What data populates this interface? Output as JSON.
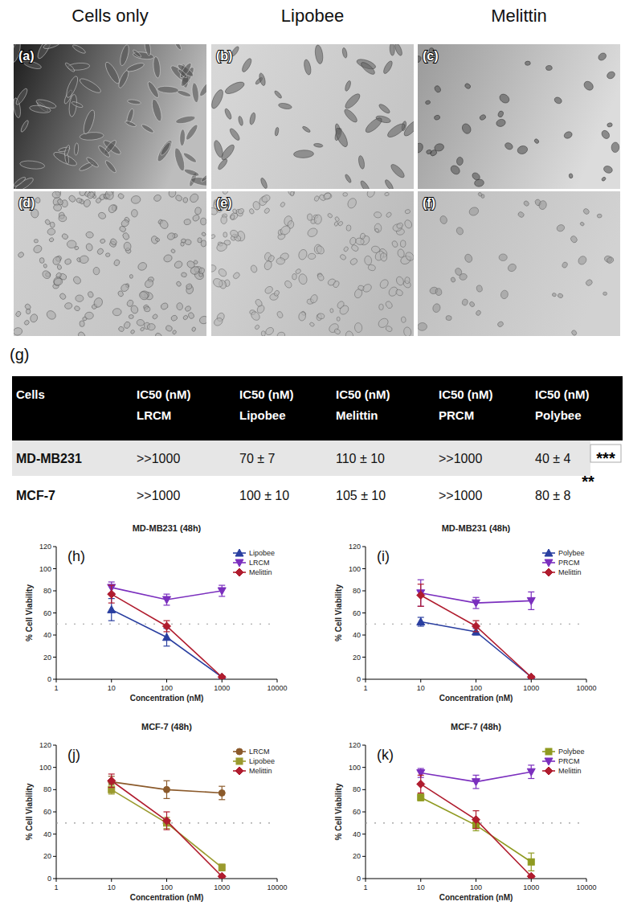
{
  "header": {
    "columns": [
      "Cells only",
      "Lipobee",
      "Melittin"
    ]
  },
  "images": {
    "labels": [
      "(a)",
      "(b)",
      "(c)",
      "(d)",
      "(e)",
      "(f)"
    ]
  },
  "table": {
    "panel": "(g)",
    "header": [
      [
        "Cells"
      ],
      [
        "IC50 (nM)",
        "LRCM"
      ],
      [
        "IC50 (nM)",
        "Lipobee"
      ],
      [
        "IC50 (nM)",
        "Melittin"
      ],
      [
        "IC50 (nM)",
        "PRCM"
      ],
      [
        "IC50 (nM)",
        "Polybee"
      ]
    ],
    "rows": [
      [
        "MD-MB231",
        ">>1000",
        "70 ± 7",
        "110 ± 10",
        ">>1000",
        "40 ± 4"
      ],
      [
        "MCF-7",
        ">>1000",
        "100 ± 10",
        "105 ± 10",
        ">>1000",
        "80 ± 8"
      ]
    ],
    "significance": [
      "***",
      "**"
    ]
  },
  "chart_data": [
    {
      "type": "line",
      "panel": "(h)",
      "title": "MD-MB231 (48h)",
      "x_label": "Concentration (nM)",
      "y_label": "% Cell Viability",
      "x": [
        10,
        100,
        1000
      ],
      "xlim": [
        1,
        10000
      ],
      "xticks": [
        1,
        10,
        100,
        1000,
        10000
      ],
      "ylim": [
        0,
        120
      ],
      "yticks": [
        0,
        20,
        40,
        60,
        80,
        100,
        120
      ],
      "log": "x",
      "legend": "upper right",
      "threshold": 50,
      "series": [
        {
          "name": "Lipobee",
          "color": "#2a3fa0",
          "marker": "triangle-up",
          "values": [
            63,
            38,
            2
          ],
          "errors": [
            10,
            8,
            1
          ]
        },
        {
          "name": "LRCM",
          "color": "#7b2fbe",
          "marker": "triangle-down",
          "values": [
            83,
            72,
            80
          ],
          "errors": [
            5,
            5,
            5
          ]
        },
        {
          "name": "Melittin",
          "color": "#b01c2e",
          "marker": "diamond",
          "values": [
            77,
            48,
            2
          ],
          "errors": [
            8,
            5,
            1
          ]
        }
      ]
    },
    {
      "type": "line",
      "panel": "(i)",
      "title": "MD-MB231 (48h)",
      "x_label": "Concentration (nM)",
      "y_label": "% Cell Viability",
      "x": [
        10,
        100,
        1000
      ],
      "xlim": [
        1,
        10000
      ],
      "xticks": [
        1,
        10,
        100,
        1000,
        10000
      ],
      "ylim": [
        0,
        120
      ],
      "yticks": [
        0,
        20,
        40,
        60,
        80,
        100,
        120
      ],
      "log": "x",
      "legend": "upper right",
      "threshold": 50,
      "series": [
        {
          "name": "Polybee",
          "color": "#2a3fa0",
          "marker": "triangle-up",
          "values": [
            52,
            43,
            2
          ],
          "errors": [
            4,
            3,
            1
          ]
        },
        {
          "name": "PRCM",
          "color": "#7b2fbe",
          "marker": "triangle-down",
          "values": [
            78,
            69,
            71
          ],
          "errors": [
            12,
            5,
            8
          ]
        },
        {
          "name": "Melittin",
          "color": "#b01c2e",
          "marker": "diamond",
          "values": [
            76,
            48,
            2
          ],
          "errors": [
            10,
            5,
            1
          ]
        }
      ]
    },
    {
      "type": "line",
      "panel": "(j)",
      "title": "MCF-7 (48h)",
      "x_label": "Concentration (nM)",
      "y_label": "% Cell Viability",
      "x": [
        10,
        100,
        1000
      ],
      "xlim": [
        1,
        10000
      ],
      "xticks": [
        1,
        10,
        100,
        1000,
        10000
      ],
      "ylim": [
        0,
        120
      ],
      "yticks": [
        0,
        20,
        40,
        60,
        80,
        100,
        120
      ],
      "log": "x",
      "legend": "upper right",
      "threshold": 50,
      "series": [
        {
          "name": "LRCM",
          "color": "#8b5a2b",
          "marker": "circle",
          "values": [
            87,
            80,
            77
          ],
          "errors": [
            5,
            8,
            6
          ]
        },
        {
          "name": "Lipobee",
          "color": "#9a9a2e",
          "marker": "square",
          "values": [
            80,
            50,
            10
          ],
          "errors": [
            4,
            5,
            3
          ]
        },
        {
          "name": "Melittin",
          "color": "#b01c2e",
          "marker": "diamond",
          "values": [
            88,
            52,
            2
          ],
          "errors": [
            6,
            8,
            1
          ]
        }
      ]
    },
    {
      "type": "line",
      "panel": "(k)",
      "title": "MCF-7 (48h)",
      "x_label": "Concentration (nM)",
      "y_label": "% Cell Viability",
      "x": [
        10,
        100,
        1000
      ],
      "xlim": [
        1,
        10000
      ],
      "xticks": [
        1,
        10,
        100,
        1000,
        10000
      ],
      "ylim": [
        0,
        120
      ],
      "yticks": [
        0,
        20,
        40,
        60,
        80,
        100,
        120
      ],
      "log": "x",
      "legend": "upper right",
      "threshold": 50,
      "series": [
        {
          "name": "Polybee",
          "color": "#8f9a20",
          "marker": "square",
          "values": [
            73,
            48,
            15
          ],
          "errors": [
            3,
            5,
            8
          ]
        },
        {
          "name": "PRCM",
          "color": "#7b2fbe",
          "marker": "triangle-down",
          "values": [
            95,
            87,
            96
          ],
          "errors": [
            4,
            6,
            6
          ]
        },
        {
          "name": "Melittin",
          "color": "#b01c2e",
          "marker": "diamond",
          "values": [
            85,
            53,
            2
          ],
          "errors": [
            8,
            8,
            1
          ]
        }
      ]
    }
  ]
}
